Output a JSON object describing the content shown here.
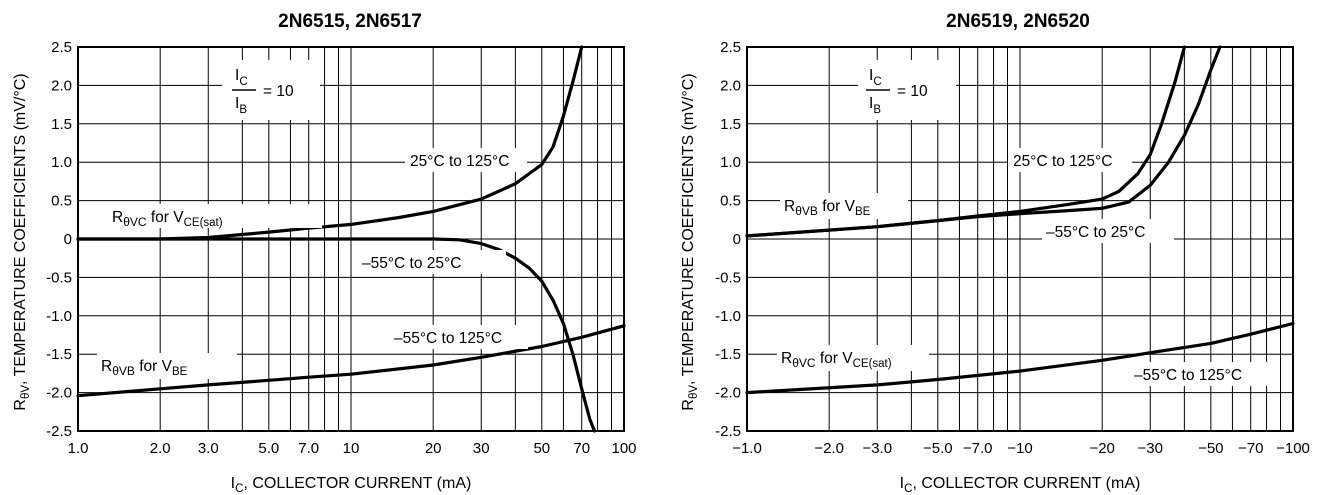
{
  "chart_data": [
    {
      "type": "line",
      "title": "2N6515, 2N6517",
      "xlabel": {
        "main": "I",
        "sub": "C",
        "rest": ", COLLECTOR CURRENT (mA)"
      },
      "ylabel": {
        "main": "R",
        "sub": "θV",
        "rest": ", TEMPERATURE COEFFICIENTS (mV/°C)"
      },
      "x_scale": "log",
      "xlim": [
        1,
        100
      ],
      "ylim": [
        -2.5,
        2.5
      ],
      "grid": true,
      "x_ticks": [
        {
          "v": 1,
          "label": "1.0"
        },
        {
          "v": 2,
          "label": "2.0"
        },
        {
          "v": 3,
          "label": "3.0"
        },
        {
          "v": 5,
          "label": "5.0"
        },
        {
          "v": 7,
          "label": "7.0"
        },
        {
          "v": 10,
          "label": "10"
        },
        {
          "v": 20,
          "label": "20"
        },
        {
          "v": 30,
          "label": "30"
        },
        {
          "v": 50,
          "label": "50"
        },
        {
          "v": 70,
          "label": "70"
        },
        {
          "v": 100,
          "label": "100"
        }
      ],
      "y_ticks": [
        {
          "v": 2.5,
          "label": "2.5"
        },
        {
          "v": 2.0,
          "label": "2.0"
        },
        {
          "v": 1.5,
          "label": "1.5"
        },
        {
          "v": 1.0,
          "label": "1.0"
        },
        {
          "v": 0.5,
          "label": "0.5"
        },
        {
          "v": 0,
          "label": "0"
        },
        {
          "v": -0.5,
          "label": "-0.5"
        },
        {
          "v": -1.0,
          "label": "-1.0"
        },
        {
          "v": -1.5,
          "label": "-1.5"
        },
        {
          "v": -2.0,
          "label": "-2.0"
        },
        {
          "v": -2.5,
          "label": "-2.5"
        }
      ],
      "series": [
        {
          "x": [
            1,
            2,
            3,
            5,
            7,
            10,
            15,
            20,
            30,
            40,
            50,
            55,
            60,
            65,
            70
          ],
          "y": [
            0,
            0,
            0.02,
            0.09,
            0.14,
            0.19,
            0.28,
            0.36,
            0.52,
            0.72,
            0.97,
            1.2,
            1.6,
            2.05,
            2.5
          ]
        },
        {
          "x": [
            1,
            10,
            20,
            25,
            30,
            35,
            40,
            45,
            50,
            55,
            60,
            65,
            70,
            75,
            78
          ],
          "y": [
            0,
            0,
            0,
            -0.01,
            -0.06,
            -0.14,
            -0.25,
            -0.38,
            -0.55,
            -0.8,
            -1.1,
            -1.5,
            -1.95,
            -2.35,
            -2.5
          ]
        },
        {
          "x": [
            1,
            2,
            3,
            5,
            7,
            10,
            20,
            30,
            50,
            70,
            100
          ],
          "y": [
            -2.04,
            -1.95,
            -1.9,
            -1.84,
            -1.8,
            -1.76,
            -1.64,
            -1.54,
            -1.4,
            -1.28,
            -1.13
          ]
        }
      ],
      "annotations": {
        "ratio": {
          "num_main": "I",
          "num_sub": "C",
          "den_main": "I",
          "den_sub": "B",
          "eq": "= 10"
        },
        "labels": [
          {
            "text": "25°C to 125°C"
          },
          {
            "text": "–55°C to 25°C"
          },
          {
            "text": "–55°C to 125°C"
          },
          {
            "main": "R",
            "sym": "θVC",
            "mid": " for V",
            "sub": "CE(sat)"
          },
          {
            "main": "R",
            "sym": "θVB",
            "mid": " for V",
            "sub": "BE"
          }
        ]
      }
    },
    {
      "type": "line",
      "title": "2N6519, 2N6520",
      "xlabel": {
        "main": "I",
        "sub": "C",
        "rest": ", COLLECTOR CURRENT (mA)"
      },
      "ylabel": {
        "main": "R",
        "sub": "θV",
        "rest": ", TEMPERATURE COEFFICIENTS (mV/°C)"
      },
      "x_scale": "log",
      "xlim": [
        -1,
        -100
      ],
      "ylim": [
        -2.5,
        2.5
      ],
      "grid": true,
      "x_ticks": [
        {
          "v": 1,
          "label": "−1.0"
        },
        {
          "v": 2,
          "label": "−2.0"
        },
        {
          "v": 3,
          "label": "−3.0"
        },
        {
          "v": 5,
          "label": "−5.0"
        },
        {
          "v": 7,
          "label": "−7.0"
        },
        {
          "v": 10,
          "label": "−10"
        },
        {
          "v": 20,
          "label": "−20"
        },
        {
          "v": 30,
          "label": "−30"
        },
        {
          "v": 50,
          "label": "−50"
        },
        {
          "v": 70,
          "label": "−70"
        },
        {
          "v": 100,
          "label": "−100"
        }
      ],
      "y_ticks": [
        {
          "v": 2.5,
          "label": "2.5"
        },
        {
          "v": 2.0,
          "label": "2.0"
        },
        {
          "v": 1.5,
          "label": "1.5"
        },
        {
          "v": 1.0,
          "label": "1.0"
        },
        {
          "v": 0.5,
          "label": "0.5"
        },
        {
          "v": 0,
          "label": "0"
        },
        {
          "v": -0.5,
          "label": "-0.5"
        },
        {
          "v": -1.0,
          "label": "-1.0"
        },
        {
          "v": -1.5,
          "label": "-1.5"
        },
        {
          "v": -2.0,
          "label": "-2.0"
        },
        {
          "v": -2.5,
          "label": "-2.5"
        }
      ],
      "series": [
        {
          "x": [
            -1,
            -3,
            -5,
            -7,
            -10,
            -15,
            -20,
            -23,
            -27,
            -30,
            -33,
            -37,
            -40
          ],
          "y": [
            0.04,
            0.16,
            0.24,
            0.3,
            0.36,
            0.45,
            0.52,
            0.62,
            0.85,
            1.1,
            1.5,
            2.05,
            2.5
          ]
        },
        {
          "x": [
            -1,
            -3,
            -5,
            -7,
            -10,
            -15,
            -20,
            -25,
            -30,
            -35,
            -40,
            -45,
            -50,
            -54
          ],
          "y": [
            0.04,
            0.16,
            0.24,
            0.29,
            0.33,
            0.37,
            0.4,
            0.48,
            0.7,
            1.0,
            1.35,
            1.75,
            2.2,
            2.5
          ]
        },
        {
          "x": [
            -1,
            -3,
            -5,
            -10,
            -20,
            -30,
            -50,
            -70,
            -100
          ],
          "y": [
            -2.0,
            -1.9,
            -1.83,
            -1.72,
            -1.58,
            -1.48,
            -1.36,
            -1.24,
            -1.1
          ]
        }
      ],
      "annotations": {
        "ratio": {
          "num_main": "I",
          "num_sub": "C",
          "den_main": "I",
          "den_sub": "B",
          "eq": "= 10"
        },
        "labels": [
          {
            "text": "25°C to 125°C"
          },
          {
            "text": "–55°C to 25°C"
          },
          {
            "text": "–55°C to 125°C"
          },
          {
            "main": "R",
            "sym": "θVB",
            "mid": " for V",
            "sub": "BE"
          },
          {
            "main": "R",
            "sym": "θVC",
            "mid": " for V",
            "sub": "CE(sat)"
          }
        ]
      }
    }
  ]
}
